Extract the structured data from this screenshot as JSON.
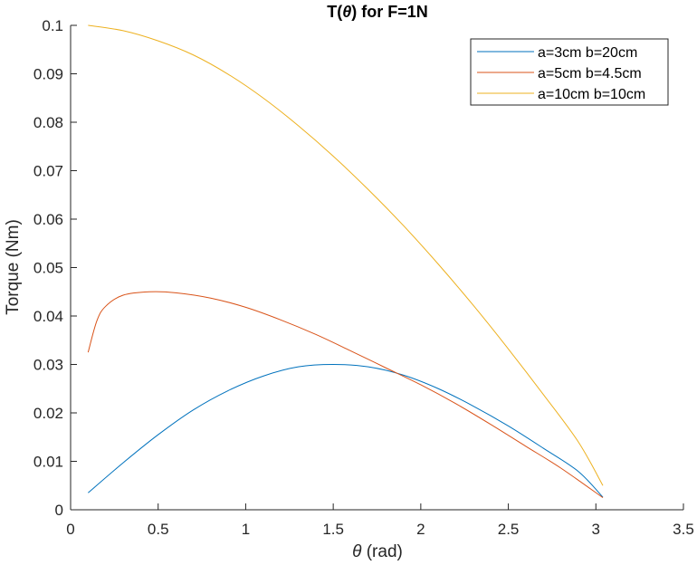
{
  "chart_data": {
    "type": "line",
    "title_parts": [
      "T(",
      "θ",
      ") for F=1N"
    ],
    "xlabel_parts": [
      "θ",
      " (rad)"
    ],
    "ylabel": "Torque (Nm)",
    "xlim": [
      0,
      3.5
    ],
    "ylim": [
      0,
      0.1
    ],
    "xticks": [
      0,
      0.5,
      1,
      1.5,
      2,
      2.5,
      3,
      3.5
    ],
    "xtick_labels": [
      "0",
      "0.5",
      "1",
      "1.5",
      "2",
      "2.5",
      "3",
      "3.5"
    ],
    "yticks": [
      0,
      0.01,
      0.02,
      0.03,
      0.04,
      0.05,
      0.06,
      0.07,
      0.08,
      0.09,
      0.1
    ],
    "ytick_labels": [
      "0",
      "0.01",
      "0.02",
      "0.03",
      "0.04",
      "0.05",
      "0.06",
      "0.07",
      "0.08",
      "0.09",
      "0.1"
    ],
    "grid": false,
    "legend_position": "top-right",
    "series": [
      {
        "name": "a=3cm b=20cm",
        "color": "#0072bd",
        "x": [
          0.1,
          0.3,
          0.5,
          0.7,
          0.9,
          1.1,
          1.3,
          1.5,
          1.7,
          1.9,
          2.1,
          2.3,
          2.5,
          2.7,
          2.9,
          3.04
        ],
        "y": [
          0.0035,
          0.0097,
          0.0155,
          0.0206,
          0.0246,
          0.0276,
          0.0295,
          0.03,
          0.0295,
          0.0278,
          0.025,
          0.0214,
          0.0173,
          0.0127,
          0.0079,
          0.0026
        ]
      },
      {
        "name": "a=5cm b=4.5cm",
        "color": "#d95319",
        "x": [
          0.1,
          0.15,
          0.2,
          0.3,
          0.45,
          0.6,
          0.8,
          1.0,
          1.2,
          1.4,
          1.6,
          1.8,
          2.0,
          2.2,
          2.4,
          2.6,
          2.8,
          3.04
        ],
        "y": [
          0.0325,
          0.039,
          0.042,
          0.0443,
          0.045,
          0.0448,
          0.0437,
          0.0418,
          0.0392,
          0.0362,
          0.0328,
          0.0293,
          0.0258,
          0.0219,
          0.0176,
          0.0131,
          0.0086,
          0.0025
        ]
      },
      {
        "name": "a=10cm b=10cm",
        "color": "#edb120",
        "x": [
          0.1,
          0.3,
          0.5,
          0.7,
          0.9,
          1.1,
          1.3,
          1.5,
          1.7,
          1.9,
          2.1,
          2.3,
          2.5,
          2.7,
          2.9,
          3.04
        ],
        "y": [
          0.1,
          0.0989,
          0.0968,
          0.0939,
          0.0899,
          0.085,
          0.0793,
          0.073,
          0.0661,
          0.0587,
          0.0507,
          0.0422,
          0.0332,
          0.0238,
          0.014,
          0.005
        ]
      }
    ]
  }
}
